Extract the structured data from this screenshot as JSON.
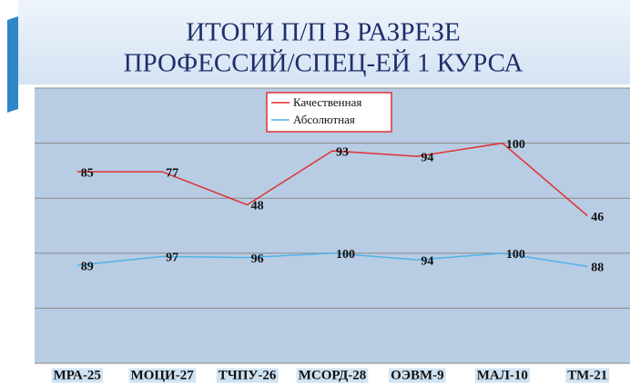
{
  "title": [
    "ИТОГИ  П/П  В РАЗРЕЗЕ",
    "ПРОФЕССИЙ/СПЕЦ-ЕЙ  1 КУРСА"
  ],
  "chart_data": {
    "type": "line",
    "stacked": true,
    "grid": true,
    "categories": [
      "МРА-25",
      "МОЦИ-27",
      "ТЧПУ-26",
      "МСОРД-28",
      "ОЭВМ-9",
      "МАЛ-10",
      "ТМ-21"
    ],
    "series": [
      {
        "name": "Абсолютная",
        "color": "#4fb3e8",
        "values": [
          89,
          97,
          96,
          100,
          94,
          100,
          88
        ]
      },
      {
        "name": "Качественная",
        "color": "#e0302f",
        "values": [
          85,
          77,
          48,
          93,
          94,
          100,
          46
        ]
      }
    ],
    "ylim": [
      0,
      250
    ],
    "yticks": [
      0,
      50,
      100,
      150,
      200,
      250
    ]
  }
}
